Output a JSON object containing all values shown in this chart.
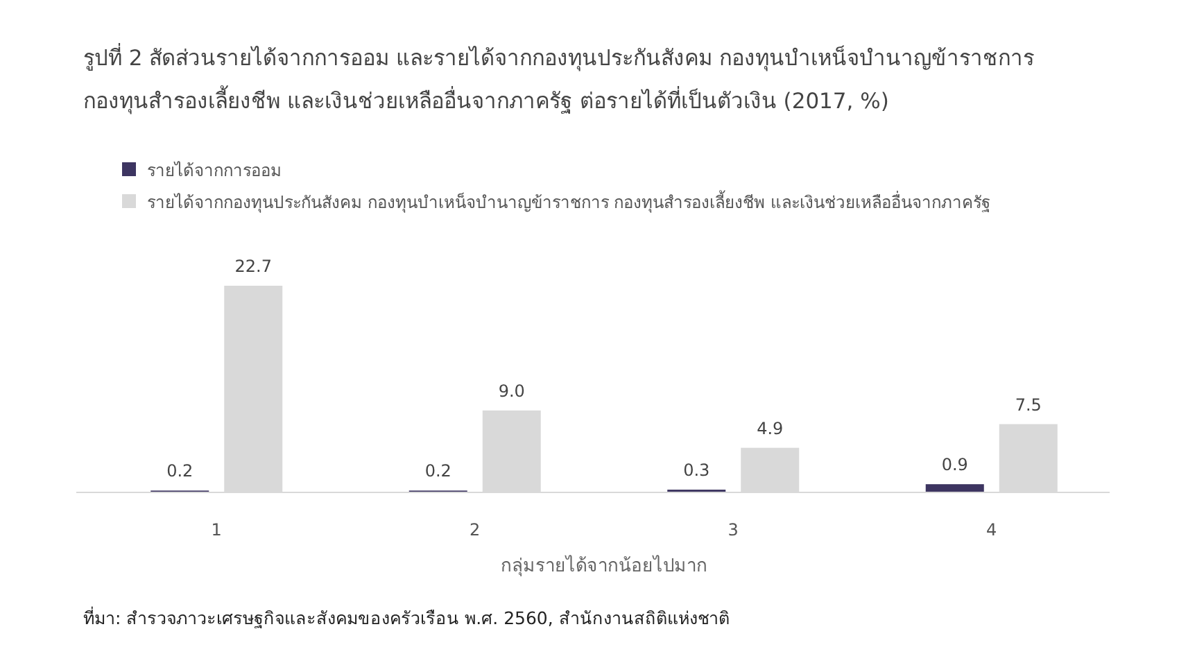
{
  "chart_data": {
    "type": "bar",
    "title": "รูปที่ 2 สัดส่วนรายได้จากการออม และรายได้จากกองทุนประกันสังคม กองทุนบำเหน็จบำนาญข้าราชการ กองทุนสำรองเลี้ยงชีพ และเงินช่วยเหลืออื่นจากภาครัฐ ต่อรายได้ที่เป็นตัวเงิน (2017, %)",
    "categories": [
      "1",
      "2",
      "3",
      "4"
    ],
    "series": [
      {
        "name": "รายได้จากการออม",
        "color": "#3d3561",
        "values": [
          0.2,
          0.2,
          0.3,
          0.9
        ],
        "value_labels": [
          "0.2",
          "0.2",
          "0.3",
          "0.9"
        ]
      },
      {
        "name": "รายได้จากกองทุนประกันสังคม กองทุนบำเหน็จบำนาญข้าราชการ กองทุนสำรองเลี้ยงชีพ และเงินช่วยเหลืออื่นจากภาครัฐ",
        "color": "#d9d9d9",
        "values": [
          22.7,
          9.0,
          4.9,
          7.5
        ],
        "value_labels": [
          "22.7",
          "9.0",
          "4.9",
          "7.5"
        ]
      }
    ],
    "xlabel": "กลุ่มรายได้จากน้อยไปมาก",
    "legend": "top left",
    "annotations": [
      "ที่มา: สำรวจภาวะเศรษฐกิจและสังคมของครัวเรือน พ.ศ. 2560, สำนักงานสถิติแห่งชาติ"
    ]
  }
}
